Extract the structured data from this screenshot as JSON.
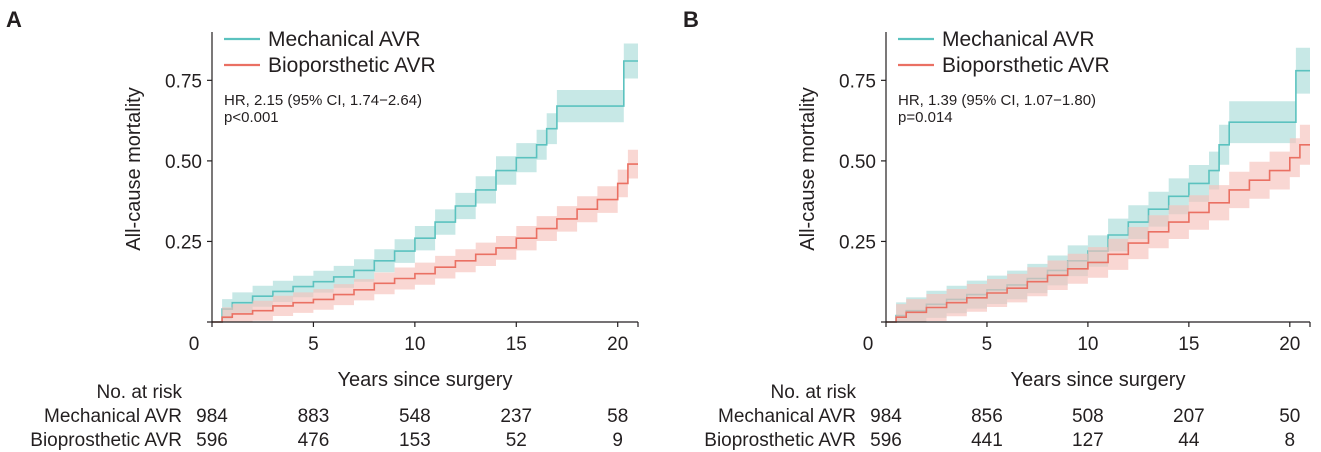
{
  "colors": {
    "mechanical": "#5bc2bf",
    "mechanical_band": "#a9dcd9",
    "bioprosthetic": "#ea7063",
    "bioprosthetic_band": "#f6c1bc",
    "axis": "#231f20"
  },
  "chart_data": [
    {
      "panel": "A",
      "type": "line",
      "step": true,
      "confidence_bands": true,
      "xlabel": "Years since surgery",
      "ylabel": "All-cause mortality",
      "xlim": [
        0,
        21
      ],
      "ylim": [
        0,
        0.9
      ],
      "xticks": [
        0,
        5,
        10,
        15,
        20
      ],
      "yticks": [
        0.25,
        0.5,
        0.75
      ],
      "ytick_labels": [
        "0.25",
        "0.50",
        "0.75"
      ],
      "grid": false,
      "legend": "top-left",
      "annotation": [
        "HR, 2.15 (95% CI, 1.74−2.64)",
        "p<0.001"
      ],
      "series": [
        {
          "name": "Mechanical AVR",
          "color_key": "mechanical",
          "x": [
            0,
            0.5,
            1,
            2,
            3,
            4,
            5,
            6,
            7,
            8,
            9,
            10,
            11,
            12,
            13,
            14,
            15,
            16,
            16.5,
            17,
            18,
            19,
            20,
            20.3,
            21
          ],
          "y": [
            0,
            0.04,
            0.06,
            0.08,
            0.095,
            0.11,
            0.125,
            0.14,
            0.16,
            0.19,
            0.22,
            0.26,
            0.31,
            0.36,
            0.41,
            0.47,
            0.51,
            0.55,
            0.6,
            0.67,
            0.67,
            0.67,
            0.67,
            0.81,
            0.81
          ],
          "ci_width": 0.03
        },
        {
          "name": "Bioporsthetic AVR",
          "color_key": "bioprosthetic",
          "x": [
            0,
            0.5,
            1,
            2,
            3,
            4,
            5,
            6,
            7,
            8,
            9,
            10,
            11,
            12,
            13,
            14,
            15,
            16,
            17,
            18,
            19,
            20,
            20.5,
            21
          ],
          "y": [
            0,
            0.015,
            0.025,
            0.035,
            0.05,
            0.06,
            0.07,
            0.085,
            0.1,
            0.12,
            0.135,
            0.15,
            0.17,
            0.19,
            0.21,
            0.23,
            0.26,
            0.29,
            0.32,
            0.35,
            0.38,
            0.43,
            0.49,
            0.49
          ],
          "ci_width": 0.03
        }
      ],
      "risk_table": {
        "header": "No. at risk",
        "rows": [
          {
            "label": "Mechanical AVR",
            "values": [
              "984",
              "883",
              "548",
              "237",
              "58"
            ]
          },
          {
            "label": "Bioprosthetic AVR",
            "values": [
              "596",
              "476",
              "153",
              "52",
              "9"
            ]
          }
        ]
      }
    },
    {
      "panel": "B",
      "type": "line",
      "step": true,
      "confidence_bands": true,
      "xlabel": "Years since surgery",
      "ylabel": "All-cause mortality",
      "xlim": [
        0,
        21
      ],
      "ylim": [
        0,
        0.9
      ],
      "xticks": [
        0,
        5,
        10,
        15,
        20
      ],
      "yticks": [
        0.25,
        0.5,
        0.75
      ],
      "ytick_labels": [
        "0.25",
        "0.50",
        "0.75"
      ],
      "grid": false,
      "legend": "top-left",
      "annotation": [
        "HR, 1.39 (95% CI, 1.07−1.80)",
        "p=0.014"
      ],
      "series": [
        {
          "name": "Mechanical AVR",
          "color_key": "mechanical",
          "x": [
            0,
            0.5,
            1,
            2,
            3,
            4,
            5,
            6,
            7,
            8,
            9,
            10,
            11,
            12,
            13,
            14,
            15,
            16,
            16.5,
            17,
            18,
            19,
            20,
            20.3,
            21
          ],
          "y": [
            0,
            0.02,
            0.035,
            0.055,
            0.07,
            0.085,
            0.1,
            0.115,
            0.135,
            0.16,
            0.19,
            0.22,
            0.27,
            0.31,
            0.35,
            0.39,
            0.43,
            0.47,
            0.55,
            0.62,
            0.62,
            0.62,
            0.62,
            0.78,
            0.78
          ],
          "ci_width": 0.04
        },
        {
          "name": "Bioporsthetic AVR",
          "color_key": "bioprosthetic",
          "x": [
            0,
            0.5,
            1,
            2,
            3,
            4,
            5,
            6,
            7,
            8,
            9,
            10,
            11,
            12,
            13,
            14,
            15,
            16,
            17,
            18,
            19,
            20,
            20.5,
            21
          ],
          "y": [
            0,
            0.015,
            0.03,
            0.045,
            0.06,
            0.075,
            0.09,
            0.105,
            0.125,
            0.145,
            0.165,
            0.185,
            0.21,
            0.245,
            0.28,
            0.31,
            0.34,
            0.37,
            0.41,
            0.44,
            0.47,
            0.51,
            0.55,
            0.55
          ],
          "ci_width": 0.04
        }
      ],
      "risk_table": {
        "header": "No. at risk",
        "rows": [
          {
            "label": "Mechanical AVR",
            "values": [
              "984",
              "856",
              "508",
              "207",
              "50"
            ]
          },
          {
            "label": "Bioprosthetic AVR",
            "values": [
              "596",
              "441",
              "127",
              "44",
              "8"
            ]
          }
        ]
      }
    }
  ]
}
